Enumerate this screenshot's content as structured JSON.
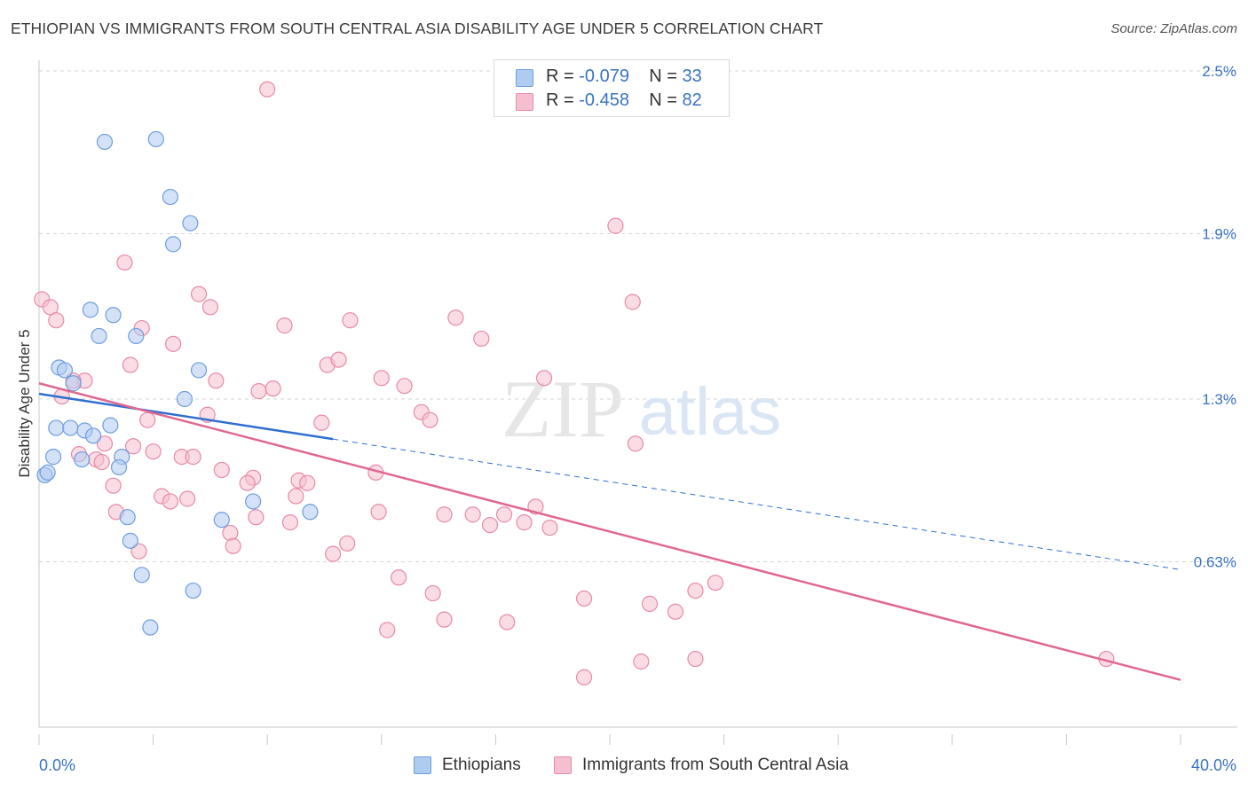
{
  "header": {
    "title": "ETHIOPIAN VS IMMIGRANTS FROM SOUTH CENTRAL ASIA DISABILITY AGE UNDER 5 CORRELATION CHART",
    "source": "Source: ZipAtlas.com"
  },
  "watermark": {
    "zip": "ZIP",
    "atlas": "atlas"
  },
  "legend": {
    "rows": [
      {
        "r_label": "R = ",
        "r_value": "-0.079",
        "n_label": "N = ",
        "n_value": "33"
      },
      {
        "r_label": "R = ",
        "r_value": "-0.458",
        "n_label": "N = ",
        "n_value": "82"
      }
    ]
  },
  "bottom_legend": {
    "series1": "Ethiopians",
    "series2": "Immigrants from South Central Asia"
  },
  "colors": {
    "blue_fill": "#aecbf0",
    "blue_stroke": "#6d9ee0",
    "blue_line": "#2f6fcf",
    "pink_fill": "#f6bfd0",
    "pink_stroke": "#e88aa8",
    "pink_line": "#e06890",
    "axis_text": "#3a73c4",
    "grid": "#d5d5d5"
  },
  "chart_data": {
    "type": "scatter",
    "title": "ETHIOPIAN VS IMMIGRANTS FROM SOUTH CENTRAL ASIA DISABILITY AGE UNDER 5 CORRELATION CHART",
    "xlabel": "",
    "ylabel": "Disability Age Under 5",
    "xlim": [
      0,
      40
    ],
    "ylim": [
      0,
      2.5
    ],
    "x_tick_labels": [
      "0.0%",
      "40.0%"
    ],
    "y_ticks": [
      {
        "value": 2.5,
        "label": "2.5%"
      },
      {
        "value": 1.88,
        "label": "1.9%"
      },
      {
        "value": 1.25,
        "label": "1.3%"
      },
      {
        "value": 0.63,
        "label": "0.63%"
      }
    ],
    "grid": true,
    "series": [
      {
        "name": "Ethiopians",
        "r": -0.079,
        "n": 33,
        "trend": {
          "x0": 0,
          "y0": 1.27,
          "x1": 40,
          "y1": 0.6,
          "solid_until_x": 10.3
        },
        "points": [
          [
            2.3,
            2.23
          ],
          [
            4.1,
            2.24
          ],
          [
            4.6,
            2.02
          ],
          [
            5.3,
            1.92
          ],
          [
            4.7,
            1.84
          ],
          [
            1.8,
            1.59
          ],
          [
            2.6,
            1.57
          ],
          [
            2.1,
            1.49
          ],
          [
            3.4,
            1.49
          ],
          [
            0.7,
            1.37
          ],
          [
            0.9,
            1.36
          ],
          [
            1.2,
            1.31
          ],
          [
            5.6,
            1.36
          ],
          [
            5.1,
            1.25
          ],
          [
            0.6,
            1.14
          ],
          [
            1.1,
            1.14
          ],
          [
            1.6,
            1.13
          ],
          [
            2.5,
            1.15
          ],
          [
            1.9,
            1.11
          ],
          [
            0.5,
            1.03
          ],
          [
            1.5,
            1.02
          ],
          [
            2.9,
            1.03
          ],
          [
            2.8,
            0.99
          ],
          [
            0.2,
            0.96
          ],
          [
            0.3,
            0.97
          ],
          [
            7.5,
            0.86
          ],
          [
            9.5,
            0.82
          ],
          [
            3.1,
            0.8
          ],
          [
            6.4,
            0.79
          ],
          [
            3.2,
            0.71
          ],
          [
            3.6,
            0.58
          ],
          [
            5.4,
            0.52
          ],
          [
            3.9,
            0.38
          ]
        ]
      },
      {
        "name": "Immigrants from South Central Asia",
        "r": -0.458,
        "n": 82,
        "trend": {
          "x0": 0,
          "y0": 1.31,
          "x1": 40,
          "y1": 0.18
        },
        "points": [
          [
            8.0,
            2.43
          ],
          [
            20.2,
            1.91
          ],
          [
            3.0,
            1.77
          ],
          [
            5.6,
            1.65
          ],
          [
            6.0,
            1.6
          ],
          [
            20.8,
            1.62
          ],
          [
            0.1,
            1.63
          ],
          [
            0.4,
            1.6
          ],
          [
            0.6,
            1.55
          ],
          [
            8.6,
            1.53
          ],
          [
            10.9,
            1.55
          ],
          [
            14.6,
            1.56
          ],
          [
            15.5,
            1.48
          ],
          [
            3.6,
            1.52
          ],
          [
            4.7,
            1.46
          ],
          [
            10.1,
            1.38
          ],
          [
            10.5,
            1.4
          ],
          [
            3.2,
            1.38
          ],
          [
            12.0,
            1.33
          ],
          [
            12.8,
            1.3
          ],
          [
            17.7,
            1.33
          ],
          [
            6.2,
            1.32
          ],
          [
            1.6,
            1.32
          ],
          [
            1.2,
            1.32
          ],
          [
            7.7,
            1.28
          ],
          [
            8.2,
            1.29
          ],
          [
            0.8,
            1.26
          ],
          [
            13.4,
            1.2
          ],
          [
            13.7,
            1.17
          ],
          [
            5.9,
            1.19
          ],
          [
            3.8,
            1.17
          ],
          [
            9.9,
            1.16
          ],
          [
            20.9,
            1.08
          ],
          [
            3.3,
            1.07
          ],
          [
            2.3,
            1.08
          ],
          [
            1.4,
            1.04
          ],
          [
            2.0,
            1.02
          ],
          [
            2.2,
            1.01
          ],
          [
            5.0,
            1.03
          ],
          [
            5.4,
            1.03
          ],
          [
            4.0,
            1.05
          ],
          [
            6.4,
            0.98
          ],
          [
            7.5,
            0.95
          ],
          [
            7.3,
            0.93
          ],
          [
            9.1,
            0.94
          ],
          [
            9.4,
            0.93
          ],
          [
            11.8,
            0.97
          ],
          [
            2.6,
            0.92
          ],
          [
            4.3,
            0.88
          ],
          [
            4.6,
            0.86
          ],
          [
            5.2,
            0.87
          ],
          [
            9.0,
            0.88
          ],
          [
            17.4,
            0.84
          ],
          [
            11.9,
            0.82
          ],
          [
            16.3,
            0.81
          ],
          [
            2.7,
            0.82
          ],
          [
            14.2,
            0.81
          ],
          [
            15.2,
            0.81
          ],
          [
            7.6,
            0.8
          ],
          [
            8.8,
            0.78
          ],
          [
            17.0,
            0.78
          ],
          [
            15.8,
            0.77
          ],
          [
            17.9,
            0.76
          ],
          [
            6.7,
            0.74
          ],
          [
            10.8,
            0.7
          ],
          [
            6.8,
            0.69
          ],
          [
            3.5,
            0.67
          ],
          [
            10.3,
            0.66
          ],
          [
            12.6,
            0.57
          ],
          [
            23.7,
            0.55
          ],
          [
            23.0,
            0.52
          ],
          [
            13.8,
            0.51
          ],
          [
            19.1,
            0.49
          ],
          [
            21.4,
            0.47
          ],
          [
            22.3,
            0.44
          ],
          [
            14.2,
            0.41
          ],
          [
            16.4,
            0.4
          ],
          [
            12.2,
            0.37
          ],
          [
            21.1,
            0.25
          ],
          [
            23.0,
            0.26
          ],
          [
            19.1,
            0.19
          ],
          [
            37.4,
            0.26
          ]
        ]
      }
    ]
  }
}
